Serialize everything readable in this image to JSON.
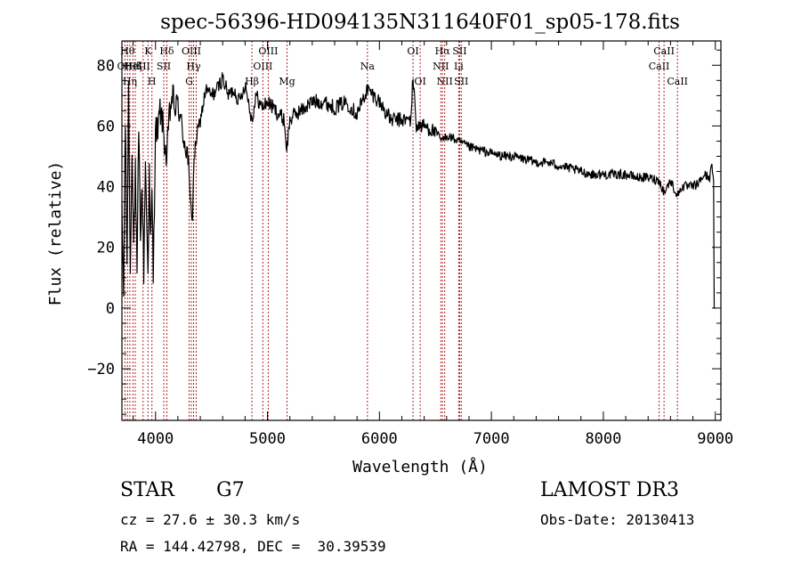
{
  "colors": {
    "spectrum": "#000000",
    "line_marker": "#b22222",
    "axis": "#000000"
  },
  "chart_data": {
    "type": "line",
    "title": "spec-56396-HD094135N311640F01_sp05-178.fits",
    "xlabel": "Wavelength (Å)",
    "ylabel": "Flux (relative)",
    "xlim": [
      3700,
      9050
    ],
    "ylim": [
      -37,
      88
    ],
    "x_ticks": [
      4000,
      5000,
      6000,
      7000,
      8000,
      9000
    ],
    "y_ticks": [
      -20,
      0,
      20,
      40,
      60,
      80
    ],
    "x_tick_labels": [
      "4000",
      "5000",
      "6000",
      "7000",
      "8000",
      "9000"
    ],
    "y_tick_labels": [
      "−20",
      "0",
      "20",
      "40",
      "60",
      "80"
    ],
    "grid": false,
    "spectrum_anchors": {
      "x": [
        3700,
        3715,
        3730,
        3745,
        3760,
        3775,
        3790,
        3805,
        3820,
        3835,
        3850,
        3865,
        3880,
        3895,
        3910,
        3925,
        3933,
        3945,
        3955,
        3968,
        3980,
        4000,
        4020,
        4040,
        4060,
        4080,
        4101,
        4120,
        4150,
        4180,
        4200,
        4230,
        4260,
        4290,
        4310,
        4330,
        4340,
        4360,
        4400,
        4450,
        4500,
        4550,
        4600,
        4650,
        4700,
        4750,
        4800,
        4861,
        4900,
        4950,
        5000,
        5050,
        5100,
        5150,
        5172,
        5200,
        5250,
        5300,
        5400,
        5500,
        5600,
        5700,
        5800,
        5890,
        5950,
        6000,
        6100,
        6200,
        6280,
        6300,
        6330,
        6400,
        6500,
        6563,
        6600,
        6700,
        6800,
        6900,
        7000,
        7100,
        7200,
        7300,
        7400,
        7500,
        7600,
        7700,
        7800,
        7900,
        8000,
        8100,
        8200,
        8300,
        8400,
        8500,
        8542,
        8600,
        8662,
        8700,
        8800,
        8850,
        8900,
        8950,
        8970,
        8985,
        8990,
        9000
      ],
      "y": [
        30,
        5,
        62,
        15,
        72,
        10,
        55,
        20,
        45,
        8,
        60,
        25,
        40,
        12,
        50,
        22,
        15,
        45,
        20,
        38,
        10,
        60,
        58,
        65,
        62,
        55,
        48,
        62,
        70,
        65,
        68,
        60,
        55,
        50,
        35,
        30,
        45,
        55,
        62,
        72,
        70,
        72,
        76,
        70,
        72,
        68,
        74,
        62,
        70,
        66,
        68,
        66,
        64,
        62,
        52,
        62,
        64,
        65,
        68,
        68,
        66,
        68,
        64,
        72,
        70,
        68,
        62,
        62,
        62,
        76,
        60,
        60,
        58,
        55,
        57,
        55,
        53,
        52,
        51,
        50,
        50,
        49,
        48,
        48,
        47,
        46,
        45,
        44,
        44,
        44,
        44,
        43,
        43,
        42,
        38,
        42,
        37,
        40,
        40,
        41,
        44,
        43,
        47,
        42,
        0,
        0
      ]
    },
    "line_markers": [
      {
        "wavelength": 3727,
        "label": "OII",
        "row": 2
      },
      {
        "wavelength": 3750,
        "label": "Hθ",
        "row": 1
      },
      {
        "wavelength": 3771,
        "label": "Hη",
        "row": 3
      },
      {
        "wavelength": 3798,
        "label": "HeI",
        "row": 2
      },
      {
        "wavelength": 3819,
        "label": "Hζ",
        "row": 2
      },
      {
        "wavelength": 3889,
        "label": "SII",
        "row": 2
      },
      {
        "wavelength": 3933,
        "label": "K",
        "row": 1
      },
      {
        "wavelength": 3968,
        "label": "H",
        "row": 3
      },
      {
        "wavelength": 4101,
        "label": "Hδ",
        "row": 1
      },
      {
        "wavelength": 4074,
        "label": "SII",
        "row": 2
      },
      {
        "wavelength": 4300,
        "label": "G",
        "row": 3
      },
      {
        "wavelength": 4320,
        "label": "OIII",
        "row": 1
      },
      {
        "wavelength": 4340,
        "label": "Hγ",
        "row": 2
      },
      {
        "wavelength": 4363,
        "label": "",
        "row": 0
      },
      {
        "wavelength": 4861,
        "label": "Hβ",
        "row": 3
      },
      {
        "wavelength": 4959,
        "label": "OIII",
        "row": 2
      },
      {
        "wavelength": 5007,
        "label": "OIII",
        "row": 1
      },
      {
        "wavelength": 5175,
        "label": "Mg",
        "row": 3
      },
      {
        "wavelength": 5893,
        "label": "Na",
        "row": 2
      },
      {
        "wavelength": 6300,
        "label": "OI",
        "row": 1
      },
      {
        "wavelength": 6364,
        "label": "OI",
        "row": 3
      },
      {
        "wavelength": 6548,
        "label": "NII",
        "row": 2
      },
      {
        "wavelength": 6563,
        "label": "Hα",
        "row": 1
      },
      {
        "wavelength": 6583,
        "label": "NII",
        "row": 3
      },
      {
        "wavelength": 6708,
        "label": "Li",
        "row": 2
      },
      {
        "wavelength": 6717,
        "label": "SII",
        "row": 1
      },
      {
        "wavelength": 6731,
        "label": "SII",
        "row": 3
      },
      {
        "wavelength": 8498,
        "label": "CaII",
        "row": 2
      },
      {
        "wavelength": 8542,
        "label": "CaII",
        "row": 1
      },
      {
        "wavelength": 8662,
        "label": "CaII",
        "row": 3
      }
    ]
  },
  "footer": {
    "object_class": "STAR",
    "subclass": "G7",
    "survey": "LAMOST DR3",
    "redshift": "cz = 27.6 ± 30.3 km/s",
    "obs_date": "Obs-Date: 20130413",
    "coords": "RA = 144.42798, DEC =  30.39539"
  }
}
